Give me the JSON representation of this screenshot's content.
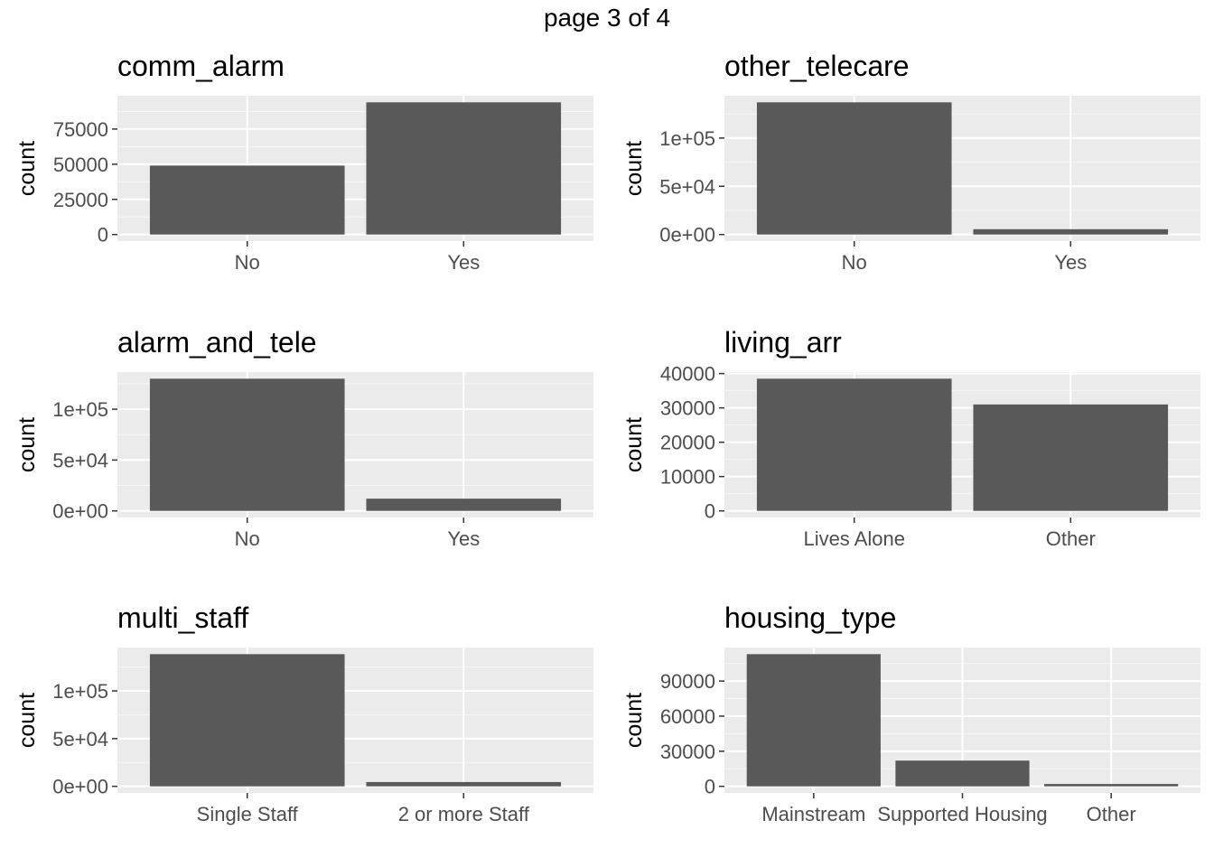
{
  "page_title": "page 3 of 4",
  "colors": {
    "panel_bg": "#ebebeb",
    "grid_major": "#ffffff",
    "bar": "#595959",
    "tick_text": "#4d4d4d",
    "tick_mark": "#333333"
  },
  "chart_data": [
    {
      "type": "bar",
      "title": "comm_alarm",
      "ylabel": "count",
      "xlabel": "",
      "categories": [
        "No",
        "Yes"
      ],
      "values": [
        49000,
        94000
      ],
      "yticks": [
        0,
        25000,
        50000,
        75000
      ],
      "ytick_labels": [
        "0",
        "25000",
        "50000",
        "75000"
      ],
      "ylim": [
        -4700,
        98700
      ]
    },
    {
      "type": "bar",
      "title": "other_telecare",
      "ylabel": "count",
      "xlabel": "",
      "categories": [
        "No",
        "Yes"
      ],
      "values": [
        137000,
        5500
      ],
      "yticks": [
        0,
        50000,
        100000
      ],
      "ytick_labels": [
        "0e+00",
        "5e+04",
        "1e+05"
      ],
      "ylim": [
        -6850,
        143850
      ]
    },
    {
      "type": "bar",
      "title": "alarm_and_tele",
      "ylabel": "count",
      "xlabel": "",
      "categories": [
        "No",
        "Yes"
      ],
      "values": [
        130000,
        12000
      ],
      "yticks": [
        0,
        50000,
        100000
      ],
      "ytick_labels": [
        "0e+00",
        "5e+04",
        "1e+05"
      ],
      "ylim": [
        -6500,
        136500
      ]
    },
    {
      "type": "bar",
      "title": "living_arr",
      "ylabel": "count",
      "xlabel": "",
      "categories": [
        "Lives Alone",
        "Other"
      ],
      "values": [
        38500,
        31000
      ],
      "yticks": [
        0,
        10000,
        20000,
        30000,
        40000
      ],
      "ytick_labels": [
        "0",
        "10000",
        "20000",
        "30000",
        "40000"
      ],
      "ylim": [
        -1925,
        40425
      ]
    },
    {
      "type": "bar",
      "title": "multi_staff",
      "ylabel": "count",
      "xlabel": "",
      "categories": [
        "Single Staff",
        "2 or more Staff"
      ],
      "values": [
        138500,
        4500
      ],
      "yticks": [
        0,
        50000,
        100000
      ],
      "ytick_labels": [
        "0e+00",
        "5e+04",
        "1e+05"
      ],
      "ylim": [
        -6925,
        145425
      ]
    },
    {
      "type": "bar",
      "title": "housing_type",
      "ylabel": "count",
      "xlabel": "",
      "categories": [
        "Mainstream",
        "Supported Housing",
        "Other"
      ],
      "values": [
        113000,
        22000,
        2000
      ],
      "yticks": [
        0,
        30000,
        60000,
        90000
      ],
      "ytick_labels": [
        "0",
        "30000",
        "60000",
        "90000"
      ],
      "ylim": [
        -5650,
        118650
      ]
    }
  ]
}
